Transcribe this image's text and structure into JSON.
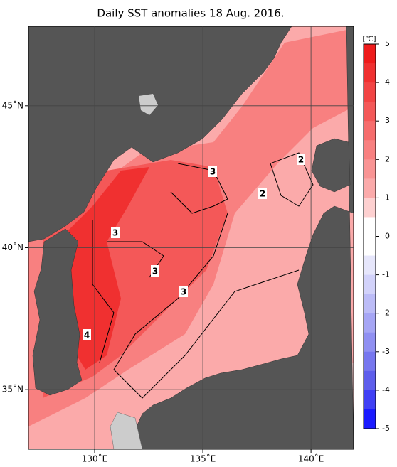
{
  "title": "Daily SST anomalies 18 Aug. 2016.",
  "map": {
    "xlim": [
      126.94,
      141.97
    ],
    "ylim": [
      32.9,
      47.8
    ],
    "xticks": [
      {
        "value": 130,
        "label": "130˚E"
      },
      {
        "value": 135,
        "label": "135˚E"
      },
      {
        "value": 140,
        "label": "140˚E"
      }
    ],
    "yticks": [
      {
        "value": 35,
        "label": "35˚N"
      },
      {
        "value": 40,
        "label": "40˚N"
      },
      {
        "value": 45,
        "label": "45˚N"
      }
    ],
    "grid": true,
    "contour_labels": [
      "2",
      "2",
      "3",
      "3",
      "3",
      "3",
      "4"
    ]
  },
  "colorbar": {
    "unit": "[℃]",
    "clim": [
      -5,
      5
    ],
    "ticks": [
      5,
      4,
      3,
      2,
      1,
      0,
      -1,
      -2,
      -3,
      -4,
      -5
    ],
    "colors": [
      "#ee1b1b",
      "#f03030",
      "#f24444",
      "#f45858",
      "#f66c6c",
      "#f88080",
      "#f99494",
      "#fbaaaa",
      "#fdd0d0",
      "#ffffff",
      "#ffffff",
      "#e6e6fb",
      "#d2d2fa",
      "#bcbcf7",
      "#a6a6f5",
      "#9090f2",
      "#7777ef",
      "#5e5eec",
      "#4040f5",
      "#1a1aff"
    ]
  }
}
